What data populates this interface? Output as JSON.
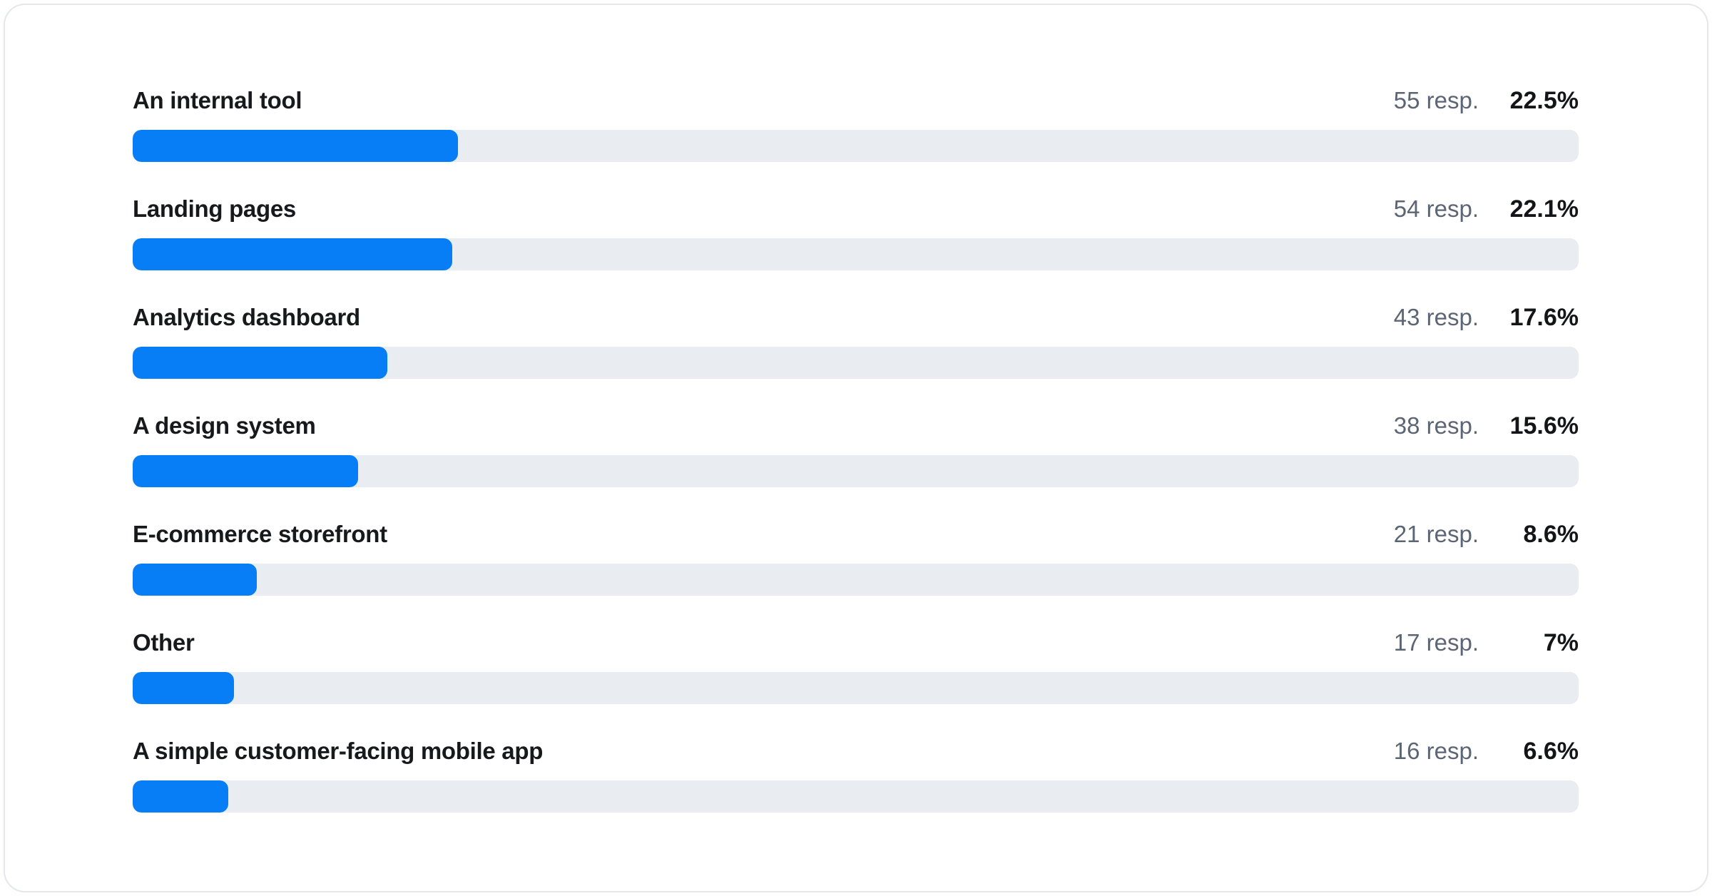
{
  "colors": {
    "bar_fill": "#077ef5",
    "bar_track": "#e9edf1",
    "label_text": "#18191c",
    "muted_text": "#5b6573",
    "percent_text": "#141519",
    "card_border": "#e4e7eb",
    "card_background": "#ffffff"
  },
  "chart_data": {
    "type": "bar",
    "orientation": "horizontal",
    "title": "",
    "xlabel": "",
    "ylabel": "",
    "xlim": [
      0,
      100
    ],
    "grid": false,
    "legend": false,
    "categories": [
      "An internal tool",
      "Landing pages",
      "Analytics dashboard",
      "A design system",
      "E-commerce storefront",
      "Other",
      "A simple customer-facing mobile app"
    ],
    "series": [
      {
        "name": "responses",
        "values": [
          55,
          54,
          43,
          38,
          21,
          17,
          16
        ]
      },
      {
        "name": "percent",
        "values": [
          22.5,
          22.1,
          17.6,
          15.6,
          8.6,
          7,
          6.6
        ]
      }
    ],
    "data_labels": [
      "22.5%",
      "22.1%",
      "17.6%",
      "15.6%",
      "8.6%",
      "7%",
      "6.6%"
    ],
    "count_labels": [
      "55 resp.",
      "54 resp.",
      "43 resp.",
      "38 resp.",
      "21 resp.",
      "17 resp.",
      "16 resp."
    ]
  },
  "rows": [
    {
      "label": "An internal tool",
      "resp": "55 resp.",
      "pct_label": "22.5%",
      "pct": 22.5
    },
    {
      "label": "Landing pages",
      "resp": "54 resp.",
      "pct_label": "22.1%",
      "pct": 22.1
    },
    {
      "label": "Analytics dashboard",
      "resp": "43 resp.",
      "pct_label": "17.6%",
      "pct": 17.6
    },
    {
      "label": "A design system",
      "resp": "38 resp.",
      "pct_label": "15.6%",
      "pct": 15.6
    },
    {
      "label": "E-commerce storefront",
      "resp": "21 resp.",
      "pct_label": "8.6%",
      "pct": 8.6
    },
    {
      "label": "Other",
      "resp": "17 resp.",
      "pct_label": "7%",
      "pct": 7
    },
    {
      "label": "A simple customer-facing mobile app",
      "resp": "16 resp.",
      "pct_label": "6.6%",
      "pct": 6.6
    }
  ]
}
